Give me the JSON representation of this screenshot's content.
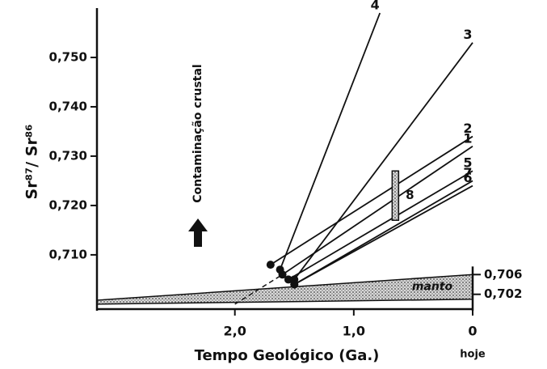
{
  "chart_data": {
    "type": "line",
    "y_label": "Sr⁸⁷/ Sr⁸⁶",
    "x_label": "Tempo Geológico (Ga.)",
    "x_note": "hoje",
    "annotation": "Contaminação crustal",
    "xlim": [
      3.16,
      0
    ],
    "xticks": [
      {
        "value": 2.0,
        "label": "2,0"
      },
      {
        "value": 1.0,
        "label": "1,0"
      },
      0
    ],
    "ylim": [
      0.699,
      0.76
    ],
    "yticks": [
      {
        "value": 0.71,
        "label": "0,710"
      },
      {
        "value": 0.72,
        "label": "0,720"
      },
      {
        "value": 0.73,
        "label": "0,730"
      },
      {
        "value": 0.74,
        "label": "0,740"
      },
      {
        "value": 0.75,
        "label": "0,750"
      }
    ],
    "y2lim": [
      0.699,
      0.76
    ],
    "y2ticks": [
      {
        "value": 0.706,
        "label": "0,706"
      },
      {
        "value": 0.702,
        "label": "0,702"
      }
    ],
    "color": "#111111",
    "series": [
      {
        "name": "1",
        "x": [
          1.6,
          0
        ],
        "values": [
          0.706,
          0.732
        ]
      },
      {
        "name": "2",
        "x": [
          1.7,
          0
        ],
        "values": [
          0.708,
          0.734
        ]
      },
      {
        "name": "3",
        "x": [
          1.5,
          0
        ],
        "values": [
          0.705,
          0.753
        ]
      },
      {
        "name": "4",
        "x": [
          1.62,
          0.78
        ],
        "values": [
          0.707,
          0.759
        ]
      },
      {
        "name": "5",
        "x": [
          1.55,
          0
        ],
        "values": [
          0.705,
          0.727
        ]
      },
      {
        "name": "6",
        "x": [
          1.5,
          0
        ],
        "values": [
          0.704,
          0.724
        ]
      },
      {
        "name": "7",
        "x": [
          1.5,
          0
        ],
        "values": [
          0.704,
          0.725
        ]
      }
    ],
    "extrapolation": {
      "x": [
        2.0,
        1.6
      ],
      "values": [
        0.7,
        0.706
      ]
    },
    "mantle": {
      "label": "manto",
      "x": [
        3.16,
        0
      ],
      "lower": [
        0.7,
        0.701
      ],
      "upper": [
        0.7008,
        0.706
      ]
    },
    "range_bar": {
      "label": "8",
      "x": 0.65,
      "low": 0.717,
      "high": 0.727
    }
  }
}
